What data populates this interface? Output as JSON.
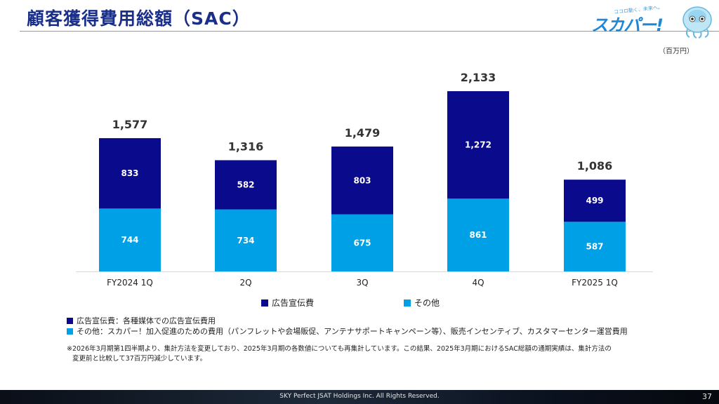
{
  "header": {
    "title": "顧客獲得費用総額（SAC）"
  },
  "logo": {
    "tagline": "ココロ動く、未来へ。",
    "brand": "スカパー!"
  },
  "unit": "（百万円）",
  "colors": {
    "ad": "#0a0a8c",
    "other": "#00a0e6",
    "title": "#1a2f8a"
  },
  "chart_data": {
    "type": "bar",
    "stacked": true,
    "categories": [
      "FY2024 1Q",
      "2Q",
      "3Q",
      "4Q",
      "FY2025 1Q"
    ],
    "series": [
      {
        "name": "その他",
        "values": [
          744,
          734,
          675,
          861,
          587
        ]
      },
      {
        "name": "広告宣伝費",
        "values": [
          833,
          582,
          803,
          1272,
          499
        ]
      }
    ],
    "totals": [
      "1,577",
      "1,316",
      "1,479",
      "2,133",
      "1,086"
    ],
    "other_labels": [
      "744",
      "734",
      "675",
      "861",
      "587"
    ],
    "ad_labels": [
      "833",
      "582",
      "803",
      "1,272",
      "499"
    ],
    "ylim": [
      0,
      2300
    ],
    "grid": false,
    "legend_position": "bottom"
  },
  "legend": {
    "ad": "広告宣伝費",
    "other": "その他"
  },
  "notes": {
    "ad": "広告宣伝費：各種媒体での広告宣伝費用",
    "other": "その他：スカパー！加入促進のための費用（パンフレットや会場販促、アンテナサポートキャンペーン等）、販売インセンティブ、カスタマーセンター運営費用"
  },
  "footnote": {
    "line1": "※2026年3月期第1四半期より、集計方法を変更しており、2025年3月期の各数値についても再集計しています。この結果、2025年3月期におけるSAC総額の通期実績は、集計方法の",
    "line2": "変更前と比較して37百万円減少しています。"
  },
  "footer": {
    "copyright": "SKY Perfect JSAT Holdings Inc. All Rights Reserved.",
    "page": "37"
  }
}
